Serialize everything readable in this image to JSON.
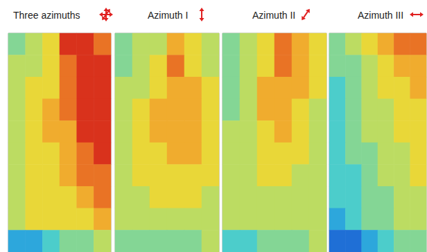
{
  "chart_data": [
    {
      "type": "heatmap",
      "title": "Three azimuths",
      "tick_labels": false,
      "cells": [
        [
          4,
          5,
          6,
          9,
          9,
          8
        ],
        [
          5,
          5,
          6,
          8,
          9,
          9
        ],
        [
          5,
          6,
          6,
          8,
          9,
          9
        ],
        [
          5,
          6,
          7,
          8,
          9,
          9
        ],
        [
          5,
          6,
          7,
          7,
          9,
          9
        ],
        [
          5,
          6,
          6,
          7,
          8,
          9
        ],
        [
          5,
          6,
          6,
          7,
          8,
          8
        ],
        [
          5,
          6,
          6,
          6,
          7,
          8
        ],
        [
          5,
          6,
          6,
          6,
          6,
          7
        ],
        [
          2,
          2,
          3,
          4,
          4,
          5
        ]
      ]
    },
    {
      "type": "heatmap",
      "title": "Azimuth I",
      "tick_labels": false,
      "cells": [
        [
          4,
          5,
          5,
          7,
          6,
          5
        ],
        [
          4,
          5,
          6,
          8,
          6,
          5
        ],
        [
          5,
          5,
          6,
          7,
          7,
          6
        ],
        [
          5,
          6,
          7,
          7,
          7,
          6
        ],
        [
          5,
          6,
          7,
          7,
          7,
          6
        ],
        [
          5,
          6,
          6,
          7,
          7,
          6
        ],
        [
          5,
          6,
          6,
          6,
          6,
          6
        ],
        [
          5,
          5,
          6,
          6,
          6,
          5
        ],
        [
          5,
          5,
          5,
          5,
          5,
          5
        ],
        [
          4,
          4,
          4,
          4,
          4,
          5
        ]
      ]
    },
    {
      "type": "heatmap",
      "title": "Azimuth II",
      "tick_labels": false,
      "cells": [
        [
          4,
          5,
          6,
          8,
          7,
          6
        ],
        [
          4,
          5,
          6,
          8,
          7,
          6
        ],
        [
          4,
          5,
          7,
          7,
          7,
          6
        ],
        [
          4,
          5,
          7,
          7,
          6,
          5
        ],
        [
          5,
          5,
          6,
          7,
          6,
          5
        ],
        [
          5,
          5,
          6,
          6,
          6,
          5
        ],
        [
          5,
          5,
          6,
          6,
          5,
          5
        ],
        [
          5,
          5,
          5,
          5,
          5,
          5
        ],
        [
          5,
          5,
          5,
          5,
          5,
          5
        ],
        [
          3,
          3,
          4,
          4,
          4,
          5
        ]
      ]
    },
    {
      "type": "heatmap",
      "title": "Azimuth III",
      "tick_labels": false,
      "cells": [
        [
          4,
          5,
          6,
          7,
          8,
          8
        ],
        [
          4,
          4,
          5,
          6,
          7,
          7
        ],
        [
          3,
          4,
          5,
          6,
          6,
          7
        ],
        [
          3,
          4,
          5,
          5,
          6,
          6
        ],
        [
          3,
          4,
          5,
          5,
          6,
          6
        ],
        [
          3,
          4,
          4,
          5,
          5,
          6
        ],
        [
          3,
          3,
          4,
          5,
          5,
          6
        ],
        [
          3,
          3,
          4,
          4,
          5,
          5
        ],
        [
          2,
          3,
          4,
          4,
          5,
          5
        ],
        [
          1,
          1,
          2,
          3,
          4,
          4
        ]
      ]
    }
  ]
}
